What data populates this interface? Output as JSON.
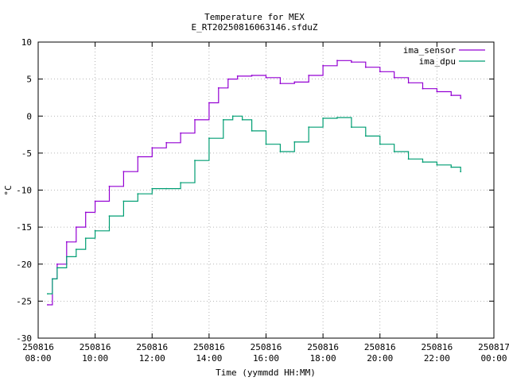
{
  "chart_data": {
    "type": "line",
    "title": "Temperature for MEX",
    "subtitle": "E_RT20250816063146.sfduZ",
    "xlabel": "Time (yymmdd HH:MM)",
    "ylabel": "°C",
    "xlim": [
      "2025-08-16 08:00",
      "2025-08-17 00:00"
    ],
    "ylim": [
      -30,
      10
    ],
    "grid": true,
    "legend_position": "top-right",
    "x_ticks": [
      {
        "date": "250816",
        "time": "08:00"
      },
      {
        "date": "250816",
        "time": "10:00"
      },
      {
        "date": "250816",
        "time": "12:00"
      },
      {
        "date": "250816",
        "time": "14:00"
      },
      {
        "date": "250816",
        "time": "16:00"
      },
      {
        "date": "250816",
        "time": "18:00"
      },
      {
        "date": "250816",
        "time": "20:00"
      },
      {
        "date": "250816",
        "time": "22:00"
      },
      {
        "date": "250817",
        "time": "00:00"
      }
    ],
    "y_ticks": [
      10,
      5,
      0,
      -5,
      -10,
      -15,
      -20,
      -25,
      -30
    ],
    "series": [
      {
        "name": "ima_sensor",
        "color": "#9400d3",
        "x": [
          "08:20",
          "08:30",
          "08:40",
          "09:00",
          "09:20",
          "09:40",
          "10:00",
          "10:30",
          "11:00",
          "11:30",
          "12:00",
          "12:30",
          "13:00",
          "13:30",
          "14:00",
          "14:20",
          "14:40",
          "15:00",
          "15:30",
          "16:00",
          "16:30",
          "17:00",
          "17:30",
          "18:00",
          "18:30",
          "19:00",
          "19:30",
          "20:00",
          "20:30",
          "21:00",
          "21:30",
          "22:00",
          "22:30",
          "22:50"
        ],
        "y": [
          -25.5,
          -22.0,
          -20.0,
          -17.0,
          -15.0,
          -13.0,
          -11.5,
          -9.5,
          -7.5,
          -5.5,
          -4.3,
          -3.6,
          -2.3,
          -0.5,
          1.8,
          3.8,
          5.0,
          5.4,
          5.5,
          5.2,
          4.4,
          4.6,
          5.5,
          6.8,
          7.5,
          7.3,
          6.6,
          6.0,
          5.2,
          4.5,
          3.7,
          3.3,
          2.8,
          2.4
        ]
      },
      {
        "name": "ima_dpu",
        "color": "#009e73",
        "x": [
          "08:20",
          "08:30",
          "08:40",
          "09:00",
          "09:20",
          "09:40",
          "10:00",
          "10:30",
          "11:00",
          "11:30",
          "12:00",
          "12:30",
          "13:00",
          "13:30",
          "14:00",
          "14:30",
          "14:50",
          "15:10",
          "15:30",
          "16:00",
          "16:30",
          "17:00",
          "17:30",
          "18:00",
          "18:30",
          "19:00",
          "19:30",
          "20:00",
          "20:30",
          "21:00",
          "21:30",
          "22:00",
          "22:30",
          "22:50"
        ],
        "y": [
          -24.0,
          -22.0,
          -20.5,
          -19.0,
          -18.0,
          -16.5,
          -15.5,
          -13.5,
          -11.5,
          -10.5,
          -9.8,
          -9.8,
          -9.0,
          -6.0,
          -3.0,
          -0.5,
          0.0,
          -0.5,
          -2.0,
          -3.8,
          -4.8,
          -3.5,
          -1.5,
          -0.3,
          -0.2,
          -1.5,
          -2.7,
          -3.8,
          -4.8,
          -5.8,
          -6.2,
          -6.6,
          -6.9,
          -7.5
        ]
      }
    ]
  }
}
